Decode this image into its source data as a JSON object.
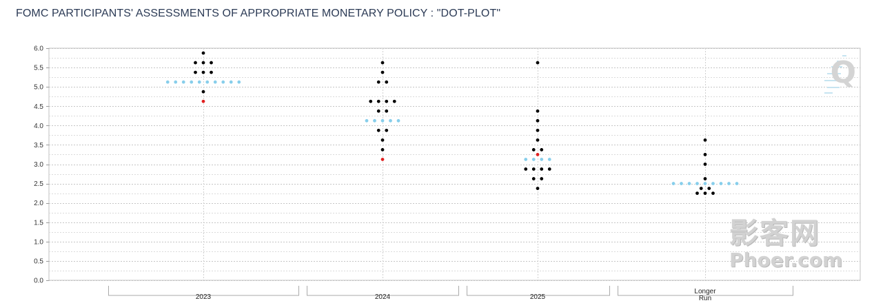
{
  "title": "FOMC PARTICIPANTS' ASSESSMENTS OF APPROPRIATE MONETARY POLICY : \"DOT-PLOT\"",
  "watermark": {
    "cn": "影客网",
    "en": "Phoer.com",
    "logo_letter": "Q"
  },
  "colors": {
    "participant": "#000000",
    "median": "#87ceeb",
    "highlight": "#e02020",
    "grid": "#c8c8c8"
  },
  "chart_data": {
    "type": "scatter",
    "title": "FOMC PARTICIPANTS' ASSESSMENTS OF APPROPRIATE MONETARY POLICY : \"DOT-PLOT\"",
    "xlabel": "",
    "ylabel": "",
    "ylim": [
      0,
      6
    ],
    "yticks": [
      "0.0",
      "0.5",
      "1.0",
      "1.5",
      "2.0",
      "2.5",
      "3.0",
      "3.5",
      "4.0",
      "4.5",
      "5.0",
      "5.5",
      "6.0"
    ],
    "grid": true,
    "categories": [
      {
        "label": "2023",
        "label_lines": [
          "2023"
        ],
        "dots": [
          [
            5.875,
            1
          ],
          [
            5.625,
            3
          ],
          [
            5.375,
            3
          ],
          [
            4.875,
            1
          ]
        ],
        "highlight": [
          4.625
        ],
        "median": {
          "value": 5.125,
          "count": 10
        }
      },
      {
        "label": "2024",
        "label_lines": [
          "2024"
        ],
        "dots": [
          [
            5.625,
            1
          ],
          [
            5.375,
            1
          ],
          [
            5.125,
            2
          ],
          [
            4.625,
            4
          ],
          [
            4.375,
            2
          ],
          [
            3.875,
            2
          ],
          [
            3.625,
            1
          ],
          [
            3.375,
            1
          ]
        ],
        "highlight": [
          3.125
        ],
        "median": {
          "value": 4.125,
          "count": 5
        }
      },
      {
        "label": "2025",
        "label_lines": [
          "2025"
        ],
        "dots": [
          [
            5.625,
            1
          ],
          [
            4.375,
            1
          ],
          [
            4.125,
            1
          ],
          [
            3.875,
            1
          ],
          [
            3.625,
            1
          ],
          [
            3.375,
            2
          ],
          [
            2.875,
            4
          ],
          [
            2.625,
            2
          ],
          [
            2.375,
            1
          ]
        ],
        "highlight": [
          3.25
        ],
        "median": {
          "value": 3.125,
          "count": 4
        }
      },
      {
        "label": "Longer Run",
        "label_lines": [
          "Longer",
          "Run"
        ],
        "dots": [
          [
            3.625,
            1
          ],
          [
            3.25,
            1
          ],
          [
            3.0,
            1
          ],
          [
            2.625,
            1
          ],
          [
            2.375,
            2
          ],
          [
            2.25,
            3
          ]
        ],
        "highlight": [],
        "median": {
          "value": 2.5,
          "count": 9
        }
      }
    ]
  }
}
